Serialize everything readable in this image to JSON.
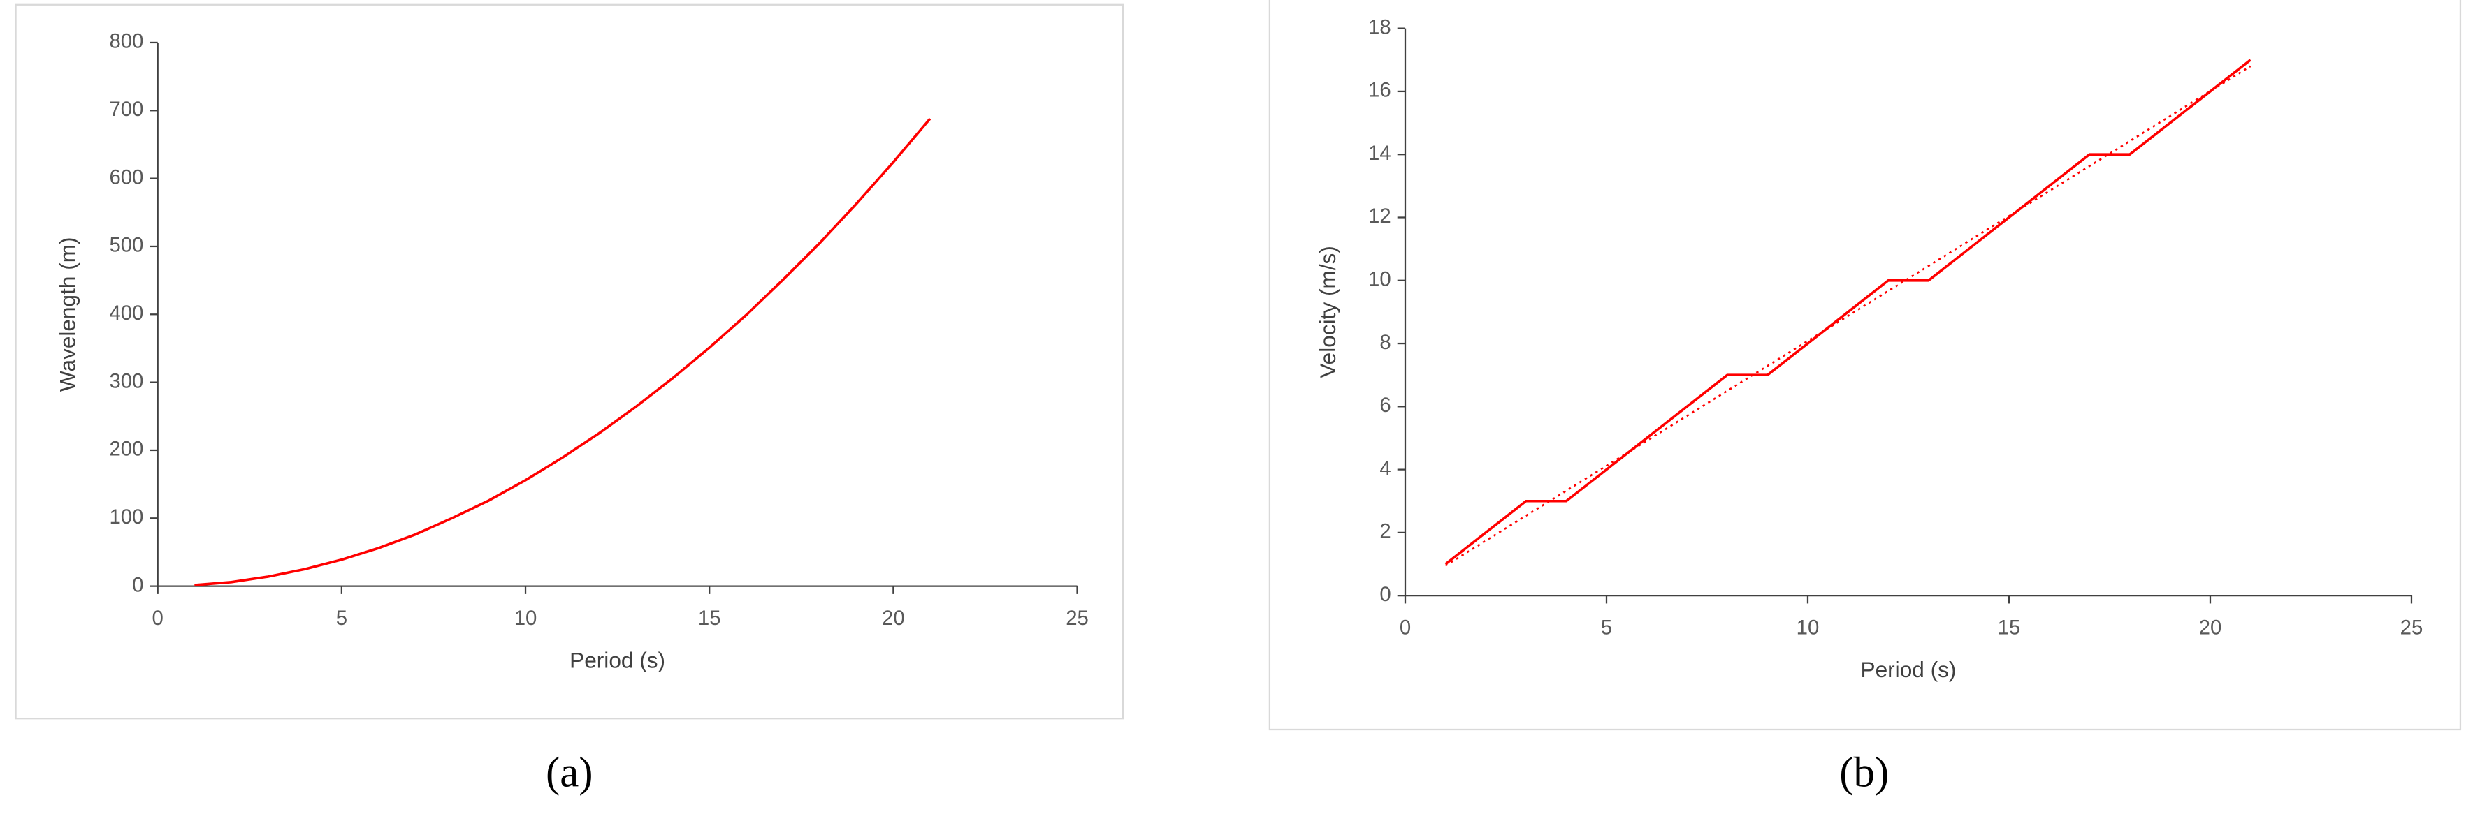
{
  "chart_data": [
    {
      "type": "line",
      "x_label": "Period (s)",
      "y_label": "Wavelength (m)",
      "caption": "(a)",
      "xlim": [
        0,
        25
      ],
      "xticks": [
        0,
        5,
        10,
        15,
        20,
        25
      ],
      "ylim": [
        0,
        800
      ],
      "yticks": [
        0,
        100,
        200,
        300,
        400,
        500,
        600,
        700,
        800
      ],
      "color": "#ff0000",
      "x": [
        1,
        2,
        3,
        4,
        5,
        6,
        7,
        8,
        9,
        10,
        11,
        12,
        13,
        14,
        15,
        16,
        17,
        18,
        19,
        20,
        21
      ],
      "values": [
        1.6,
        6,
        14,
        25,
        39,
        56,
        76,
        100,
        126,
        156,
        189,
        225,
        264,
        306,
        351,
        399,
        451,
        505,
        563,
        624,
        688
      ]
    },
    {
      "type": "line",
      "x_label": "Period (s)",
      "y_label": "Velocity  (m/s)",
      "caption": "(b)",
      "xlim": [
        0,
        25
      ],
      "xticks": [
        0,
        5,
        10,
        15,
        20,
        25
      ],
      "ylim": [
        0,
        18
      ],
      "yticks": [
        0,
        2,
        4,
        6,
        8,
        10,
        12,
        14,
        16,
        18
      ],
      "color": "#ff0000",
      "x": [
        1,
        2,
        3,
        4,
        5,
        6,
        7,
        8,
        9,
        10,
        11,
        12,
        13,
        14,
        15,
        16,
        17,
        18,
        19,
        20,
        21
      ],
      "values": [
        1,
        2,
        3,
        3,
        4,
        5,
        6,
        7,
        7,
        8,
        9,
        10,
        10,
        11,
        12,
        13,
        14,
        14,
        15,
        16,
        17
      ],
      "trendline": {
        "x": [
          1,
          21
        ],
        "values": [
          0.95,
          16.8
        ],
        "style": "dotted"
      }
    }
  ]
}
